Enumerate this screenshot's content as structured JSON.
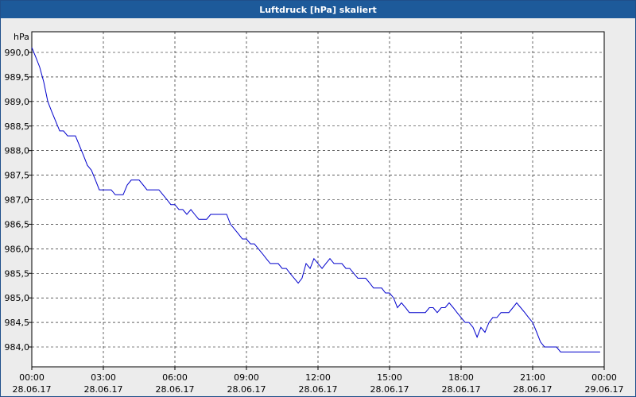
{
  "window": {
    "title": "Luftdruck [hPa] skaliert"
  },
  "chart_data": {
    "type": "line",
    "title": "Luftdruck [hPa] skaliert",
    "ylabel": "hPa",
    "xlabel": "",
    "ylim": [
      983.6,
      990.1
    ],
    "y_ticks": [
      "990,0",
      "989,5",
      "989,0",
      "988,5",
      "988,0",
      "987,5",
      "987,0",
      "986,5",
      "986,0",
      "985,5",
      "985,0",
      "984,5",
      "984,0"
    ],
    "y_tick_values": [
      990.0,
      989.5,
      989.0,
      988.5,
      988.0,
      987.5,
      987.0,
      986.5,
      986.0,
      985.5,
      985.0,
      984.5,
      984.0
    ],
    "x_range_hours": [
      0,
      24
    ],
    "x_ticks": [
      {
        "time": "00:00",
        "date": "28.06.17",
        "hour": 0
      },
      {
        "time": "03:00",
        "date": "28.06.17",
        "hour": 3
      },
      {
        "time": "06:00",
        "date": "28.06.17",
        "hour": 6
      },
      {
        "time": "09:00",
        "date": "28.06.17",
        "hour": 9
      },
      {
        "time": "12:00",
        "date": "28.06.17",
        "hour": 12
      },
      {
        "time": "15:00",
        "date": "28.06.17",
        "hour": 15
      },
      {
        "time": "18:00",
        "date": "28.06.17",
        "hour": 18
      },
      {
        "time": "21:00",
        "date": "28.06.17",
        "hour": 21
      },
      {
        "time": "00:00",
        "date": "29.06.17",
        "hour": 24
      }
    ],
    "grid": true,
    "line_color": "#0000cc",
    "series": [
      {
        "x": [
          0,
          0.17,
          0.33,
          0.5,
          0.67,
          0.83,
          1.0,
          1.17,
          1.33,
          1.5,
          1.67,
          1.83,
          2.0,
          2.17,
          2.33,
          2.5,
          2.67,
          2.83,
          3.0,
          3.17,
          3.33,
          3.5,
          3.67,
          3.83,
          4.0,
          4.17,
          4.33,
          4.5,
          4.67,
          4.83,
          5.0,
          5.17,
          5.33,
          5.5,
          5.67,
          5.83,
          6.0,
          6.17,
          6.33,
          6.5,
          6.67,
          6.83,
          7.0,
          7.17,
          7.33,
          7.5,
          7.67,
          7.83,
          8.0,
          8.17,
          8.33,
          8.5,
          8.67,
          8.83,
          9.0,
          9.17,
          9.33,
          9.5,
          9.67,
          9.83,
          10.0,
          10.17,
          10.33,
          10.5,
          10.67,
          10.83,
          11.0,
          11.17,
          11.33,
          11.5,
          11.67,
          11.83,
          12.0,
          12.17,
          12.33,
          12.5,
          12.67,
          12.83,
          13.0,
          13.17,
          13.33,
          13.5,
          13.67,
          13.83,
          14.0,
          14.17,
          14.33,
          14.5,
          14.67,
          14.83,
          15.0,
          15.17,
          15.33,
          15.5,
          15.67,
          15.83,
          16.0,
          16.17,
          16.33,
          16.5,
          16.67,
          16.83,
          17.0,
          17.17,
          17.33,
          17.5,
          17.67,
          17.83,
          18.0,
          18.17,
          18.33,
          18.5,
          18.67,
          18.83,
          19.0,
          19.17,
          19.33,
          19.5,
          19.67,
          19.83,
          20.0,
          20.17,
          20.33,
          20.5,
          20.67,
          20.83,
          21.0,
          21.17,
          21.33,
          21.5,
          21.67,
          21.83,
          22.0,
          22.17,
          22.33,
          22.5,
          22.67,
          22.83,
          23.0,
          23.17,
          23.33,
          23.5,
          23.67,
          23.83
        ],
        "values": [
          990.1,
          989.9,
          989.7,
          989.4,
          989.0,
          988.8,
          988.6,
          988.4,
          988.4,
          988.3,
          988.3,
          988.3,
          988.1,
          987.9,
          987.7,
          987.6,
          987.4,
          987.2,
          987.2,
          987.2,
          987.2,
          987.1,
          987.1,
          987.1,
          987.3,
          987.4,
          987.4,
          987.4,
          987.3,
          987.2,
          987.2,
          987.2,
          987.2,
          987.1,
          987.0,
          986.9,
          986.9,
          986.8,
          986.8,
          986.7,
          986.8,
          986.7,
          986.6,
          986.6,
          986.6,
          986.7,
          986.7,
          986.7,
          986.7,
          986.7,
          986.5,
          986.4,
          986.3,
          986.2,
          986.2,
          986.1,
          986.1,
          986.0,
          985.9,
          985.8,
          985.7,
          985.7,
          985.7,
          985.6,
          985.6,
          985.5,
          985.4,
          985.3,
          985.4,
          985.7,
          985.6,
          985.8,
          985.7,
          985.6,
          985.7,
          985.8,
          985.7,
          985.7,
          985.7,
          985.6,
          985.6,
          985.5,
          985.4,
          985.4,
          985.4,
          985.3,
          985.2,
          985.2,
          985.2,
          985.1,
          985.1,
          985.0,
          984.8,
          984.9,
          984.8,
          984.7,
          984.7,
          984.7,
          984.7,
          984.7,
          984.8,
          984.8,
          984.7,
          984.8,
          984.8,
          984.9,
          984.8,
          984.7,
          984.6,
          984.5,
          984.5,
          984.4,
          984.2,
          984.4,
          984.3,
          984.5,
          984.6,
          984.6,
          984.7,
          984.7,
          984.7,
          984.8,
          984.9,
          984.8,
          984.7,
          984.6,
          984.5,
          984.3,
          984.1,
          984.0,
          984.0,
          984.0,
          984.0,
          983.9,
          983.9,
          983.9,
          983.9,
          983.9,
          983.9,
          983.9,
          983.9,
          983.9,
          983.9,
          983.9
        ]
      }
    ]
  }
}
